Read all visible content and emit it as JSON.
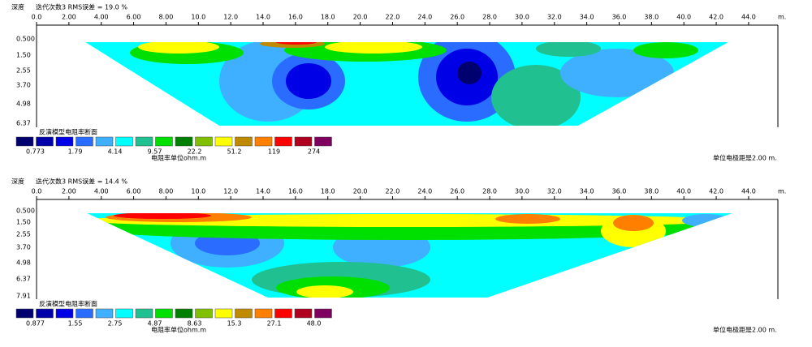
{
  "panels": [
    {
      "depth_title": "深度",
      "header": "迭代次数3 RMS误差 = 19.0 %",
      "x_ticks": [
        "0.0",
        "2.00",
        "4.00",
        "6.00",
        "8.00",
        "10.0",
        "12.0",
        "14.0",
        "16.0",
        "18.0",
        "20.0",
        "22.0",
        "24.0",
        "26.0",
        "28.0",
        "30.0",
        "32.0",
        "34.0",
        "36.0",
        "38.0",
        "40.0",
        "42.0",
        "44.0"
      ],
      "x_unit": "m.",
      "depths": [
        "0.500",
        "1.50",
        "2.55",
        "3.70",
        "4.98",
        "6.37"
      ],
      "legend_title": "反演模型电阻率断面",
      "legend_colors": [
        "#00006e",
        "#0000a8",
        "#0000e6",
        "#2a6cff",
        "#3fb0ff",
        "#00ffff",
        "#20c090",
        "#00e000",
        "#008000",
        "#80c000",
        "#ffff00",
        "#c08a00",
        "#ff8000",
        "#ff0000",
        "#b00020",
        "#800060"
      ],
      "legend_labels": [
        "0.773",
        "1.79",
        "4.14",
        "9.57",
        "22.2",
        "51.2",
        "119",
        "274"
      ],
      "unit": "电阻率单位ohm.m",
      "spacing": "单位电极距是2.00 m."
    },
    {
      "depth_title": "深度",
      "header": "迭代次数3 RMS误差 = 14.4 %",
      "x_ticks": [
        "0.0",
        "2.00",
        "4.00",
        "6.00",
        "8.00",
        "10.0",
        "12.0",
        "14.0",
        "16.0",
        "18.0",
        "20.0",
        "22.0",
        "24.0",
        "26.0",
        "28.0",
        "30.0",
        "32.0",
        "34.0",
        "36.0",
        "38.0",
        "40.0",
        "42.0",
        "44.0"
      ],
      "x_unit": "m.",
      "depths": [
        "0.500",
        "1.50",
        "2.55",
        "3.70",
        "4.98",
        "6.37",
        "7.91"
      ],
      "legend_title": "反演模型电阻率断面",
      "legend_colors": [
        "#00006e",
        "#0000a8",
        "#0000e6",
        "#2a6cff",
        "#3fb0ff",
        "#00ffff",
        "#20c090",
        "#00e000",
        "#008000",
        "#80c000",
        "#ffff00",
        "#c08a00",
        "#ff8000",
        "#ff0000",
        "#b00020",
        "#800060"
      ],
      "legend_labels": [
        "0.877",
        "1.55",
        "2.75",
        "4.87",
        "8.63",
        "15.3",
        "27.1",
        "48.0"
      ],
      "unit": "电阻率单位ohm.m",
      "spacing": "单位电极距是2.00 m."
    }
  ]
}
